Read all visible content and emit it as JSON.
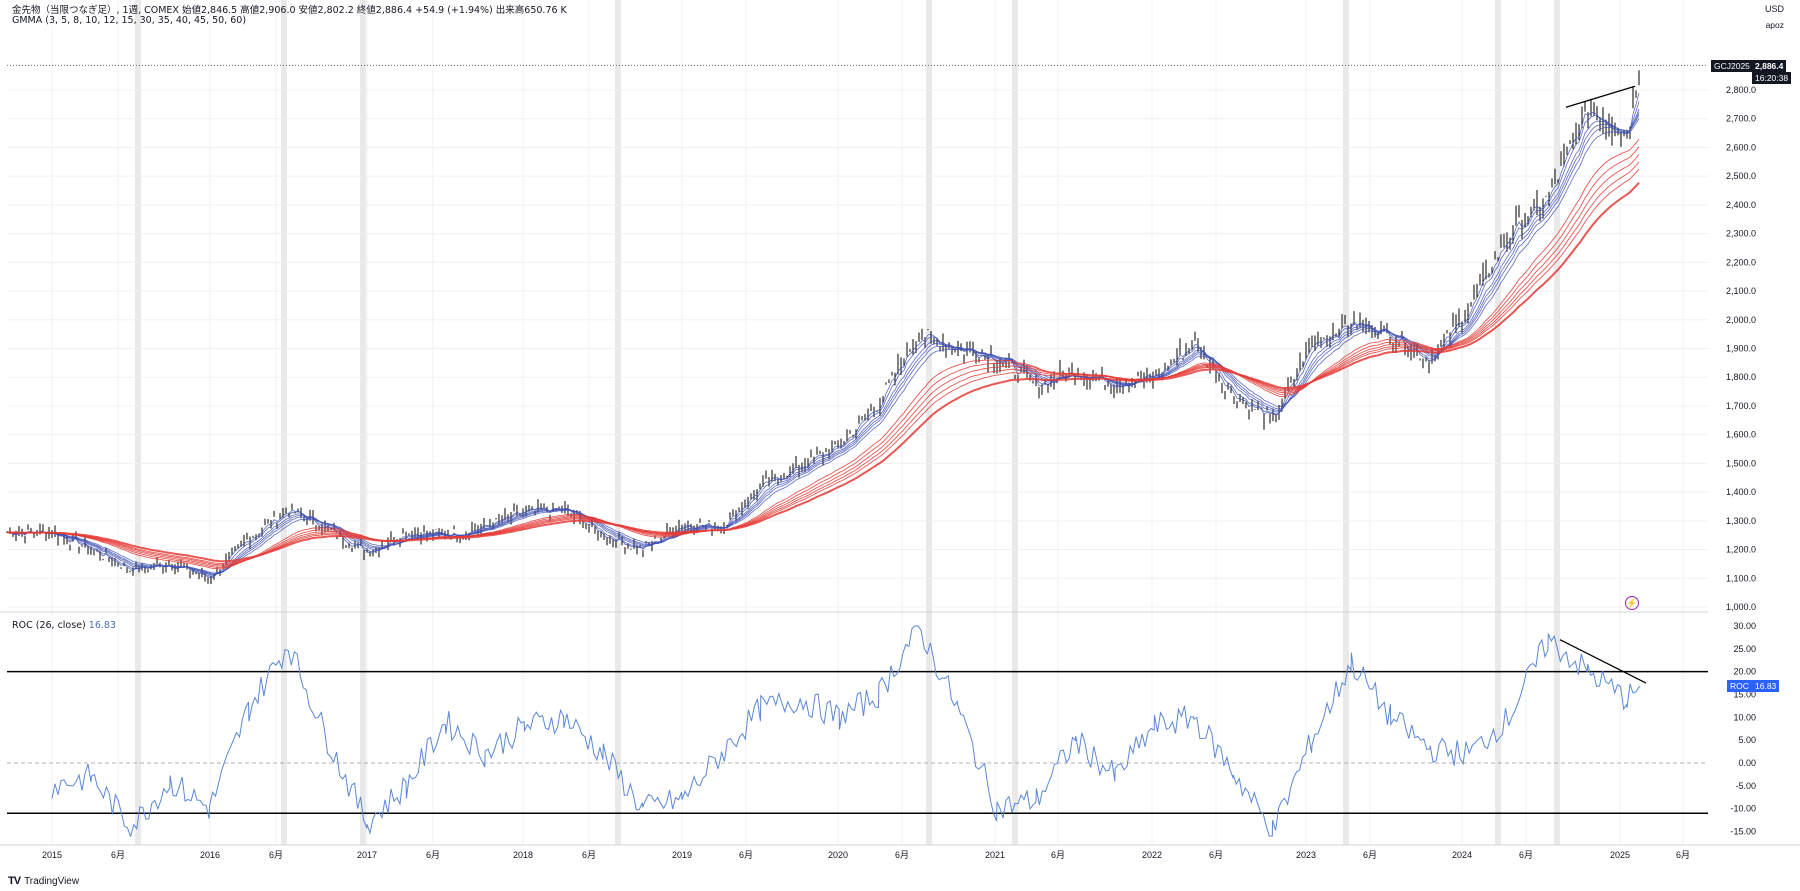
{
  "header": {
    "main_legend": "金先物（当限つなぎ足）, 1週, COMEX  始値2,846.5  高値2,906.0  安値2,802.2  終値2,886.4  +54.9 (+1.94%)  出来高650.76 K",
    "indicator_legend": "GMMA (3, 5, 8, 10, 12, 15, 30, 35, 40, 45, 50, 60)",
    "roc_legend_name": "ROC (26, close)",
    "roc_legend_value": "16.83"
  },
  "axis": {
    "currency": "USD",
    "scale_mode": "apoz"
  },
  "price_tag": {
    "symbol": "GCJ2025",
    "price": "2,886.4",
    "countdown": "16:20:38"
  },
  "roc_tag": {
    "name": "ROC",
    "value": "16.83"
  },
  "brand": {
    "logo": "TV",
    "name": "TradingView"
  },
  "colors": {
    "price_bar": "#000000",
    "fast_ma": "#3f51b5",
    "slow_ma": "#e53935",
    "roc_line": "#5b87d6",
    "grid": "#eef0f3",
    "highlight_band": "#e4e4e4"
  },
  "chart_data": [
    {
      "type": "line",
      "title": "金先物（当限つなぎ足）, 1週, COMEX",
      "y_scale": "linear",
      "ylim": [
        1000,
        2900
      ],
      "y_ticks": [
        "1,000.0",
        "1,100.0",
        "1,200.0",
        "1,300.0",
        "1,400.0",
        "1,500.0",
        "1,600.0",
        "1,700.0",
        "1,800.0",
        "1,900.0",
        "2,000.0",
        "2,100.0",
        "2,200.0",
        "2,300.0",
        "2,400.0",
        "2,500.0",
        "2,600.0",
        "2,700.0",
        "2,800.0"
      ],
      "x_ticks": [
        "2015",
        "6月",
        "2016",
        "6月",
        "2017",
        "6月",
        "2018",
        "6月",
        "2019",
        "6月",
        "2020",
        "6月",
        "2021",
        "6月",
        "2022",
        "6月",
        "2023",
        "6月",
        "2024",
        "6月",
        "2025",
        "6月"
      ],
      "grid": true,
      "series": [
        {
          "name": "GC close (approx.)",
          "x": [
            "2015-01",
            "2015-04",
            "2015-07",
            "2015-10",
            "2016-01",
            "2016-04",
            "2016-07",
            "2016-10",
            "2017-01",
            "2017-04",
            "2017-07",
            "2017-10",
            "2018-01",
            "2018-04",
            "2018-07",
            "2018-10",
            "2019-01",
            "2019-04",
            "2019-07",
            "2019-10",
            "2020-01",
            "2020-04",
            "2020-07",
            "2020-10",
            "2021-01",
            "2021-04",
            "2021-07",
            "2021-10",
            "2022-01",
            "2022-04",
            "2022-07",
            "2022-10",
            "2023-01",
            "2023-04",
            "2023-07",
            "2023-10",
            "2024-01",
            "2024-04",
            "2024-07",
            "2024-10",
            "2025-01",
            "2025-02"
          ],
          "y": [
            1260,
            1200,
            1130,
            1150,
            1100,
            1240,
            1340,
            1270,
            1190,
            1260,
            1250,
            1280,
            1330,
            1340,
            1250,
            1200,
            1290,
            1280,
            1420,
            1490,
            1560,
            1710,
            1950,
            1900,
            1870,
            1770,
            1820,
            1780,
            1800,
            1920,
            1740,
            1650,
            1920,
            1990,
            1950,
            1860,
            2040,
            2300,
            2420,
            2740,
            2650,
            2886
          ]
        }
      ],
      "annotations": [
        "rising trendline on price at 2024-2025 highs"
      ]
    },
    {
      "type": "line",
      "title": "ROC (26, close)",
      "ylim": [
        -17,
        31
      ],
      "y_ticks": [
        "30.00",
        "25.00",
        "20.00",
        "15.00",
        "10.00",
        "5.00",
        "0.00",
        "-5.00",
        "-10.00",
        "-15.00"
      ],
      "reference_lines": [
        20,
        0,
        -11
      ],
      "series": [
        {
          "name": "ROC",
          "x": [
            "2015-01",
            "2015-04",
            "2015-07",
            "2015-10",
            "2016-01",
            "2016-04",
            "2016-07",
            "2016-10",
            "2017-01",
            "2017-04",
            "2017-07",
            "2017-10",
            "2018-01",
            "2018-04",
            "2018-07",
            "2018-10",
            "2019-01",
            "2019-04",
            "2019-07",
            "2019-10",
            "2020-01",
            "2020-04",
            "2020-07",
            "2020-10",
            "2021-01",
            "2021-04",
            "2021-07",
            "2021-10",
            "2022-01",
            "2022-04",
            "2022-07",
            "2022-10",
            "2023-01",
            "2023-04",
            "2023-07",
            "2023-10",
            "2024-01",
            "2024-04",
            "2024-07",
            "2024-10",
            "2025-01",
            "2025-02"
          ],
          "y": [
            -5,
            -3,
            -14,
            -4,
            -10,
            12,
            26,
            5,
            -13,
            -5,
            9,
            2,
            8,
            10,
            2,
            -10,
            -8,
            2,
            12,
            14,
            10,
            15,
            30,
            12,
            -10,
            -8,
            5,
            -3,
            8,
            10,
            -2,
            -15,
            5,
            22,
            10,
            3,
            2,
            10,
            27,
            20,
            14,
            16.83
          ]
        }
      ],
      "annotations": [
        "falling trendline on ROC highs (bearish divergence)"
      ]
    }
  ]
}
